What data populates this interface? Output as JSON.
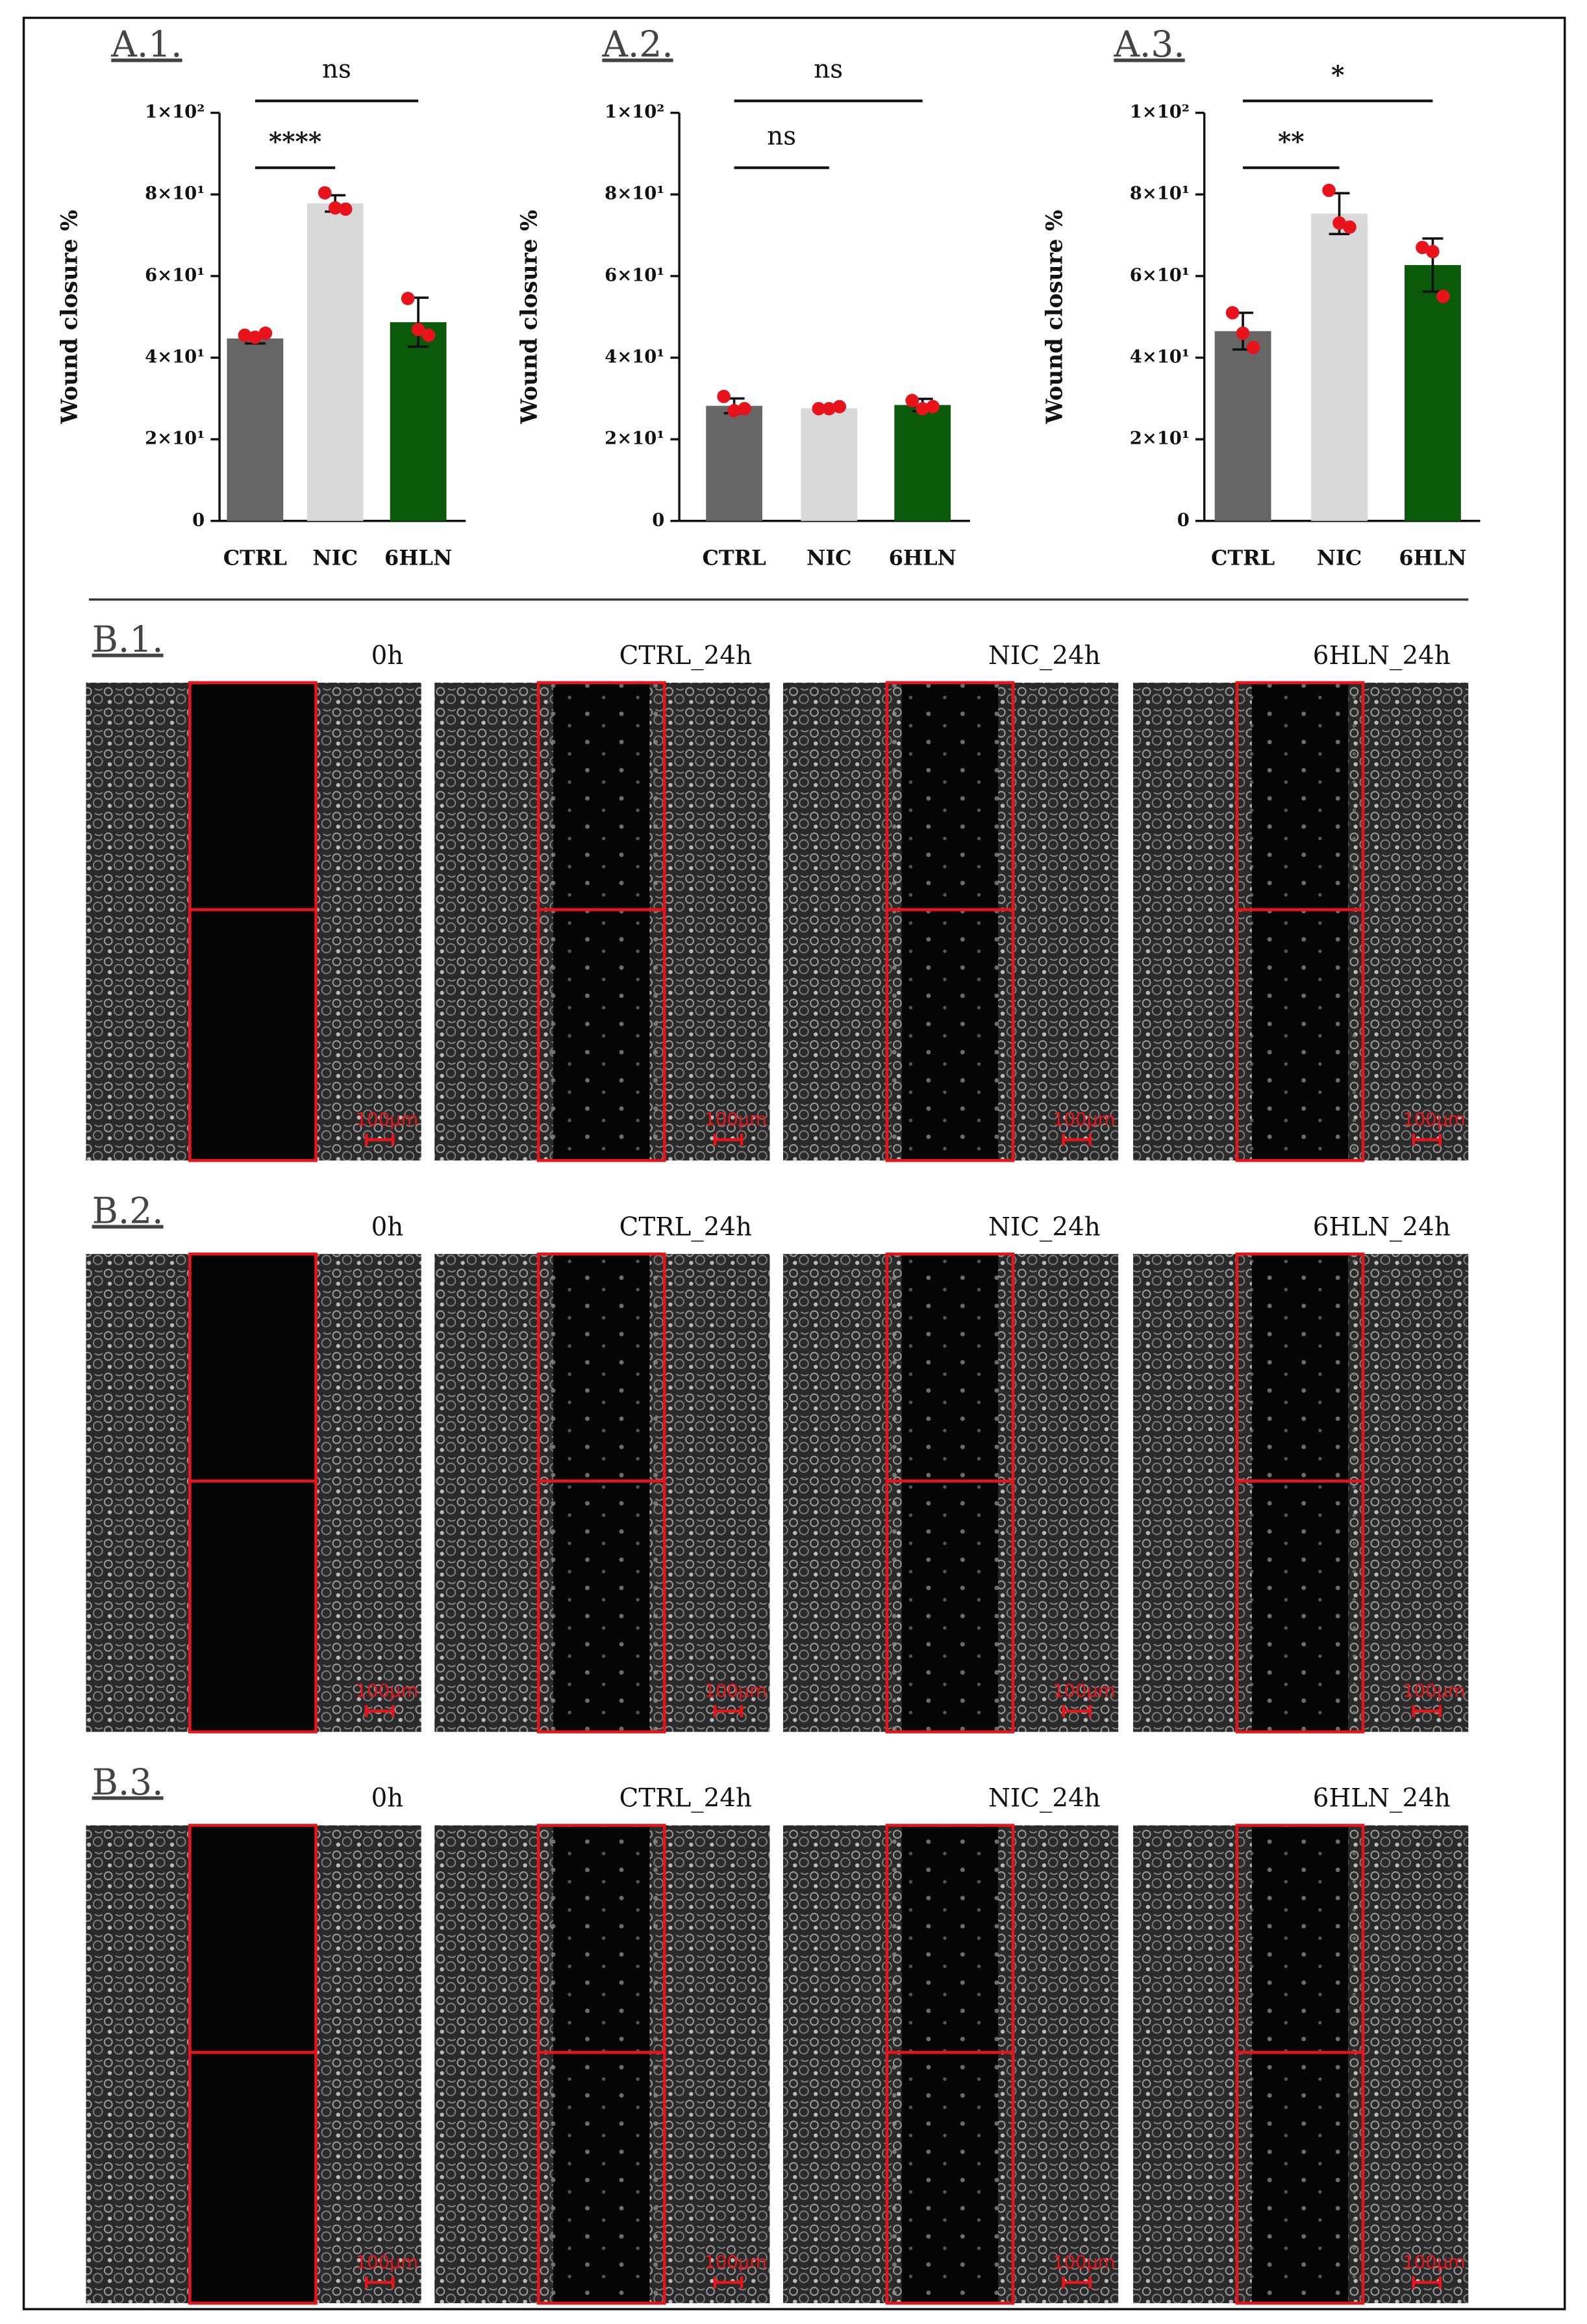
{
  "chart_data": [
    {
      "type": "bar",
      "title": "A.1.",
      "y_label": "Wound closure %",
      "categories": [
        "CTRL",
        "NIC",
        "6HLN"
      ],
      "values": [
        44.7,
        77.8,
        48.7
      ],
      "errors": [
        1.2,
        2.0,
        6.0
      ],
      "points": [
        [
          45.5,
          45,
          46
        ],
        [
          80.4,
          76.7,
          76.4
        ],
        [
          54.5,
          46.9,
          45.5
        ]
      ],
      "colors": [
        "#666666",
        "#d9d9d9",
        "#0b5a0b"
      ],
      "point_color": "#e8131b",
      "ylim": [
        0,
        100
      ],
      "yticks": [
        0,
        {
          "value": 20,
          "label": "2×10¹"
        },
        {
          "value": 40,
          "label": "4×10¹"
        },
        {
          "value": 60,
          "label": "6×10¹"
        },
        {
          "value": 80,
          "label": "8×10¹"
        },
        {
          "value": 100,
          "label": "1×10²"
        }
      ],
      "annotations": [
        {
          "text": "****",
          "categories": [
            "CTRL",
            "NIC"
          ]
        },
        {
          "text": "ns",
          "categories": [
            "CTRL",
            "6HLN"
          ]
        }
      ]
    },
    {
      "type": "bar",
      "title": "A.2.",
      "y_label": "Wound closure %",
      "categories": [
        "CTRL",
        "NIC",
        "6HLN"
      ],
      "values": [
        28.2,
        27.6,
        28.4
      ],
      "errors": [
        1.8,
        0.5,
        1.5
      ],
      "points": [
        [
          30.5,
          27,
          27.5
        ],
        [
          27.5,
          27.5,
          28
        ],
        [
          29.5,
          27.5,
          28
        ]
      ],
      "colors": [
        "#666666",
        "#d9d9d9",
        "#0b5a0b"
      ],
      "point_color": "#e8131b",
      "ylim": [
        0,
        100
      ],
      "yticks": [
        0,
        {
          "value": 20,
          "label": "2×10¹"
        },
        {
          "value": 40,
          "label": "4×10¹"
        },
        {
          "value": 60,
          "label": "6×10¹"
        },
        {
          "value": 80,
          "label": "8×10¹"
        },
        {
          "value": 100,
          "label": "1×10²"
        }
      ],
      "annotations": [
        {
          "text": "ns",
          "categories": [
            "CTRL",
            "NIC"
          ]
        },
        {
          "text": "ns",
          "categories": [
            "CTRL",
            "6HLN"
          ]
        }
      ]
    },
    {
      "type": "bar",
      "title": "A.3.",
      "y_label": "Wound closure %",
      "categories": [
        "CTRL",
        "NIC",
        "6HLN"
      ],
      "values": [
        46.5,
        75.3,
        62.7
      ],
      "errors": [
        4.5,
        5.0,
        6.5
      ],
      "points": [
        [
          51,
          46,
          42.5
        ],
        [
          81,
          73,
          72
        ],
        [
          67,
          66,
          55
        ]
      ],
      "colors": [
        "#666666",
        "#d9d9d9",
        "#0b5a0b"
      ],
      "point_color": "#e8131b",
      "ylim": [
        0,
        100
      ],
      "yticks": [
        0,
        {
          "value": 20,
          "label": "2×10¹"
        },
        {
          "value": 40,
          "label": "4×10¹"
        },
        {
          "value": 60,
          "label": "6×10¹"
        },
        {
          "value": 80,
          "label": "8×10¹"
        },
        {
          "value": 100,
          "label": "1×10²"
        }
      ],
      "annotations": [
        {
          "text": "**",
          "categories": [
            "CTRL",
            "NIC"
          ]
        },
        {
          "text": "*",
          "categories": [
            "CTRL",
            "6HLN"
          ]
        }
      ]
    }
  ],
  "images": {
    "scale_bar": "100μm",
    "rows": [
      {
        "label": "B.1.",
        "captions": [
          "0h",
          "CTRL_24h",
          "NIC_24h",
          "6HLN_24h"
        ]
      },
      {
        "label": "B.2.",
        "captions": [
          "0h",
          "CTRL_24h",
          "NIC_24h",
          "6HLN_24h"
        ]
      },
      {
        "label": "B.3.",
        "captions": [
          "0h",
          "CTRL_24h",
          "NIC_24h",
          "6HLN_24h"
        ]
      }
    ]
  }
}
